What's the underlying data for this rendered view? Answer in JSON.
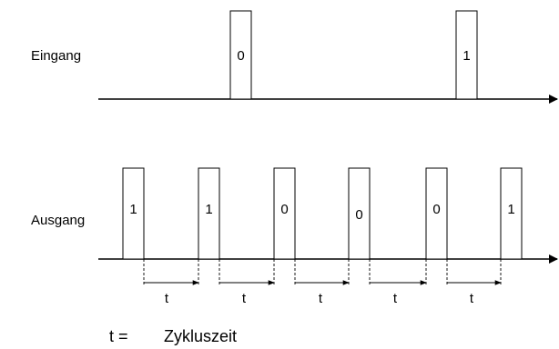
{
  "labels": {
    "input": "Eingang",
    "output": "Ausgang"
  },
  "input_pulses": [
    {
      "value": "0"
    },
    {
      "value": "1"
    }
  ],
  "output_pulses": [
    {
      "value": "1"
    },
    {
      "value": "1"
    },
    {
      "value": "0"
    },
    {
      "value": "0"
    },
    {
      "value": "0"
    },
    {
      "value": "1"
    }
  ],
  "interval_label": "t",
  "legend": {
    "symbol": "t =",
    "text": "Zykluszeit"
  }
}
